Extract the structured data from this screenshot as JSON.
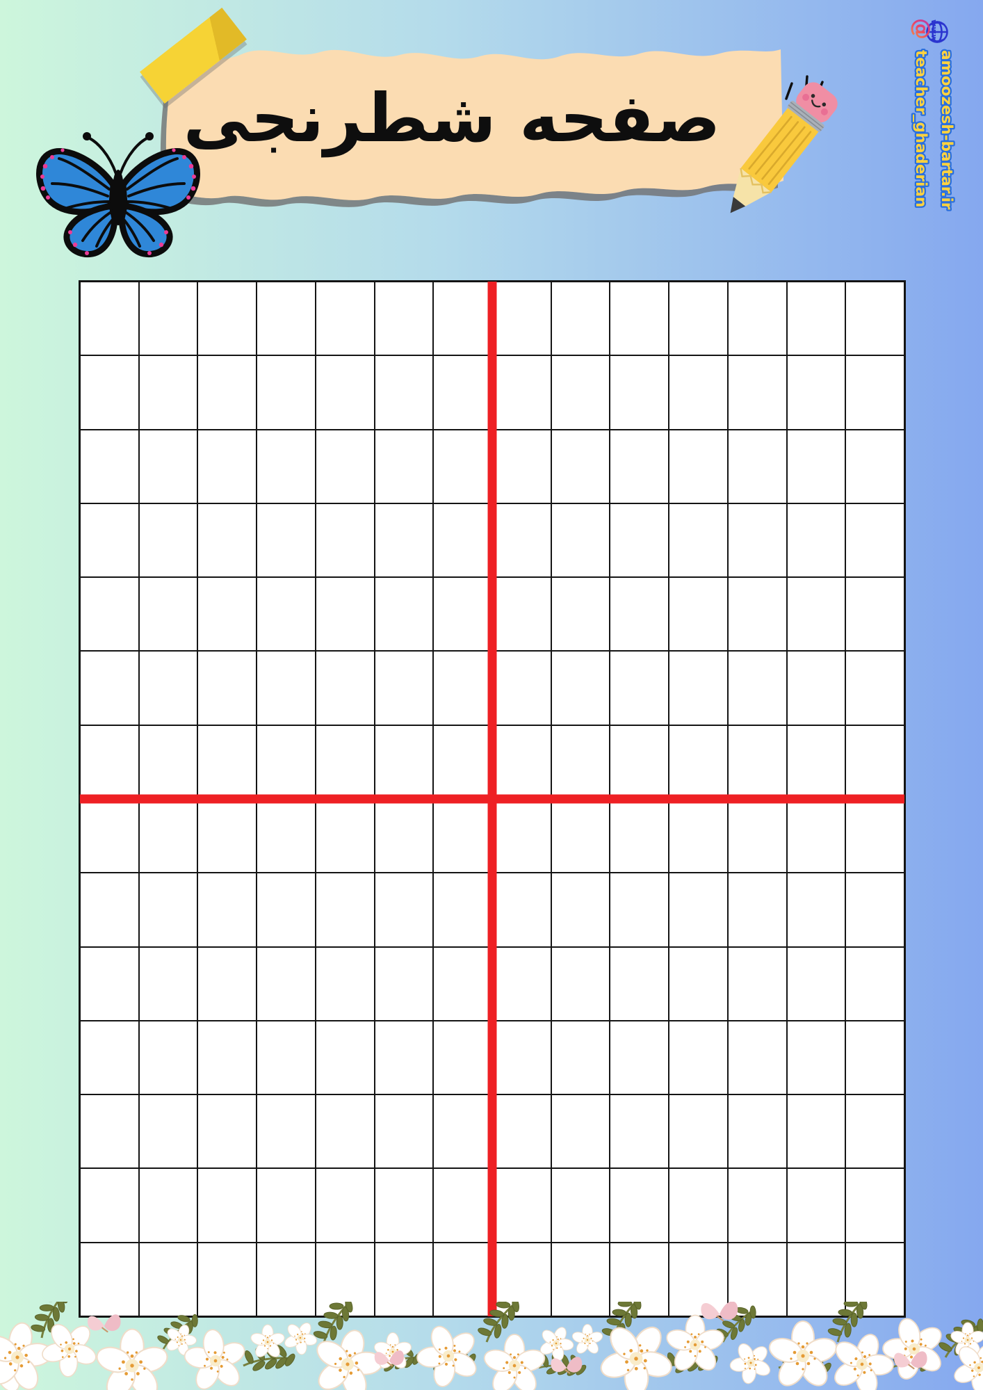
{
  "page": {
    "title": "صفحه شطرنجی",
    "background": {
      "gradient_left": "#cdf6dc",
      "gradient_middle": "#b4dbeb",
      "gradient_right": "#85a8ef"
    }
  },
  "banner": {
    "paper_color": "#fbdcb2",
    "tape_color": "#f6d335"
  },
  "credits": {
    "website_prefix": "www",
    "website": "amoozesh-bartar.ir",
    "social": "teacher_ghaderian",
    "text_color": "#ffd23f",
    "outline_color": "#2a6fdd",
    "globe_color": "#2b35cf"
  },
  "grid": {
    "columns": 14,
    "rows": 14,
    "line_color": "#141414",
    "axis_color": "#ee2024",
    "cell_background": "#ffffff"
  },
  "decorations": {
    "butterfly": "blue-butterfly-illustration",
    "pencil": "smiling-pencil-illustration",
    "flower_border": "white-rose-garland",
    "butterfly_blue": "#2f87d8",
    "butterfly_spot_pink": "#ea3c96"
  }
}
